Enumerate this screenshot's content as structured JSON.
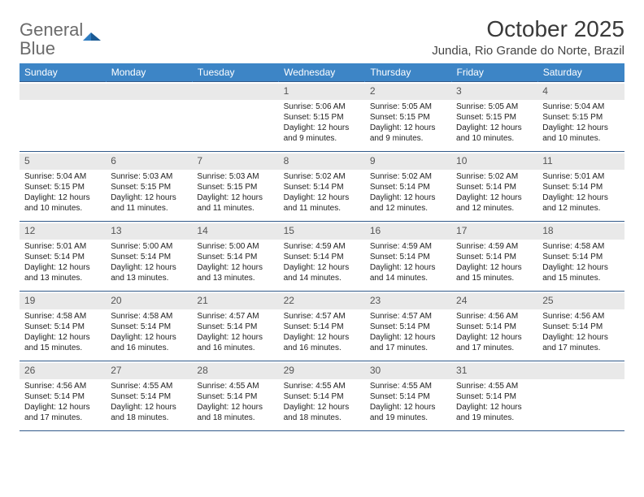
{
  "logo": {
    "word1": "General",
    "word2": "Blue"
  },
  "title": "October 2025",
  "location": "Jundia, Rio Grande do Norte, Brazil",
  "colors": {
    "header_bg": "#3d85c6",
    "header_text": "#ffffff",
    "daynum_bg": "#e9e9e9",
    "daynum_text": "#555555",
    "border": "#325a8a",
    "logo_gray": "#6b6b6b",
    "logo_blue": "#2f7cc0",
    "body_text": "#222222"
  },
  "day_headers": [
    "Sunday",
    "Monday",
    "Tuesday",
    "Wednesday",
    "Thursday",
    "Friday",
    "Saturday"
  ],
  "weeks": [
    [
      {
        "n": "",
        "lines": []
      },
      {
        "n": "",
        "lines": []
      },
      {
        "n": "",
        "lines": []
      },
      {
        "n": "1",
        "lines": [
          "Sunrise: 5:06 AM",
          "Sunset: 5:15 PM",
          "Daylight: 12 hours and 9 minutes."
        ]
      },
      {
        "n": "2",
        "lines": [
          "Sunrise: 5:05 AM",
          "Sunset: 5:15 PM",
          "Daylight: 12 hours and 9 minutes."
        ]
      },
      {
        "n": "3",
        "lines": [
          "Sunrise: 5:05 AM",
          "Sunset: 5:15 PM",
          "Daylight: 12 hours and 10 minutes."
        ]
      },
      {
        "n": "4",
        "lines": [
          "Sunrise: 5:04 AM",
          "Sunset: 5:15 PM",
          "Daylight: 12 hours and 10 minutes."
        ]
      }
    ],
    [
      {
        "n": "5",
        "lines": [
          "Sunrise: 5:04 AM",
          "Sunset: 5:15 PM",
          "Daylight: 12 hours and 10 minutes."
        ]
      },
      {
        "n": "6",
        "lines": [
          "Sunrise: 5:03 AM",
          "Sunset: 5:15 PM",
          "Daylight: 12 hours and 11 minutes."
        ]
      },
      {
        "n": "7",
        "lines": [
          "Sunrise: 5:03 AM",
          "Sunset: 5:15 PM",
          "Daylight: 12 hours and 11 minutes."
        ]
      },
      {
        "n": "8",
        "lines": [
          "Sunrise: 5:02 AM",
          "Sunset: 5:14 PM",
          "Daylight: 12 hours and 11 minutes."
        ]
      },
      {
        "n": "9",
        "lines": [
          "Sunrise: 5:02 AM",
          "Sunset: 5:14 PM",
          "Daylight: 12 hours and 12 minutes."
        ]
      },
      {
        "n": "10",
        "lines": [
          "Sunrise: 5:02 AM",
          "Sunset: 5:14 PM",
          "Daylight: 12 hours and 12 minutes."
        ]
      },
      {
        "n": "11",
        "lines": [
          "Sunrise: 5:01 AM",
          "Sunset: 5:14 PM",
          "Daylight: 12 hours and 12 minutes."
        ]
      }
    ],
    [
      {
        "n": "12",
        "lines": [
          "Sunrise: 5:01 AM",
          "Sunset: 5:14 PM",
          "Daylight: 12 hours and 13 minutes."
        ]
      },
      {
        "n": "13",
        "lines": [
          "Sunrise: 5:00 AM",
          "Sunset: 5:14 PM",
          "Daylight: 12 hours and 13 minutes."
        ]
      },
      {
        "n": "14",
        "lines": [
          "Sunrise: 5:00 AM",
          "Sunset: 5:14 PM",
          "Daylight: 12 hours and 13 minutes."
        ]
      },
      {
        "n": "15",
        "lines": [
          "Sunrise: 4:59 AM",
          "Sunset: 5:14 PM",
          "Daylight: 12 hours and 14 minutes."
        ]
      },
      {
        "n": "16",
        "lines": [
          "Sunrise: 4:59 AM",
          "Sunset: 5:14 PM",
          "Daylight: 12 hours and 14 minutes."
        ]
      },
      {
        "n": "17",
        "lines": [
          "Sunrise: 4:59 AM",
          "Sunset: 5:14 PM",
          "Daylight: 12 hours and 15 minutes."
        ]
      },
      {
        "n": "18",
        "lines": [
          "Sunrise: 4:58 AM",
          "Sunset: 5:14 PM",
          "Daylight: 12 hours and 15 minutes."
        ]
      }
    ],
    [
      {
        "n": "19",
        "lines": [
          "Sunrise: 4:58 AM",
          "Sunset: 5:14 PM",
          "Daylight: 12 hours and 15 minutes."
        ]
      },
      {
        "n": "20",
        "lines": [
          "Sunrise: 4:58 AM",
          "Sunset: 5:14 PM",
          "Daylight: 12 hours and 16 minutes."
        ]
      },
      {
        "n": "21",
        "lines": [
          "Sunrise: 4:57 AM",
          "Sunset: 5:14 PM",
          "Daylight: 12 hours and 16 minutes."
        ]
      },
      {
        "n": "22",
        "lines": [
          "Sunrise: 4:57 AM",
          "Sunset: 5:14 PM",
          "Daylight: 12 hours and 16 minutes."
        ]
      },
      {
        "n": "23",
        "lines": [
          "Sunrise: 4:57 AM",
          "Sunset: 5:14 PM",
          "Daylight: 12 hours and 17 minutes."
        ]
      },
      {
        "n": "24",
        "lines": [
          "Sunrise: 4:56 AM",
          "Sunset: 5:14 PM",
          "Daylight: 12 hours and 17 minutes."
        ]
      },
      {
        "n": "25",
        "lines": [
          "Sunrise: 4:56 AM",
          "Sunset: 5:14 PM",
          "Daylight: 12 hours and 17 minutes."
        ]
      }
    ],
    [
      {
        "n": "26",
        "lines": [
          "Sunrise: 4:56 AM",
          "Sunset: 5:14 PM",
          "Daylight: 12 hours and 17 minutes."
        ]
      },
      {
        "n": "27",
        "lines": [
          "Sunrise: 4:55 AM",
          "Sunset: 5:14 PM",
          "Daylight: 12 hours and 18 minutes."
        ]
      },
      {
        "n": "28",
        "lines": [
          "Sunrise: 4:55 AM",
          "Sunset: 5:14 PM",
          "Daylight: 12 hours and 18 minutes."
        ]
      },
      {
        "n": "29",
        "lines": [
          "Sunrise: 4:55 AM",
          "Sunset: 5:14 PM",
          "Daylight: 12 hours and 18 minutes."
        ]
      },
      {
        "n": "30",
        "lines": [
          "Sunrise: 4:55 AM",
          "Sunset: 5:14 PM",
          "Daylight: 12 hours and 19 minutes."
        ]
      },
      {
        "n": "31",
        "lines": [
          "Sunrise: 4:55 AM",
          "Sunset: 5:14 PM",
          "Daylight: 12 hours and 19 minutes."
        ]
      },
      {
        "n": "",
        "lines": []
      }
    ]
  ]
}
